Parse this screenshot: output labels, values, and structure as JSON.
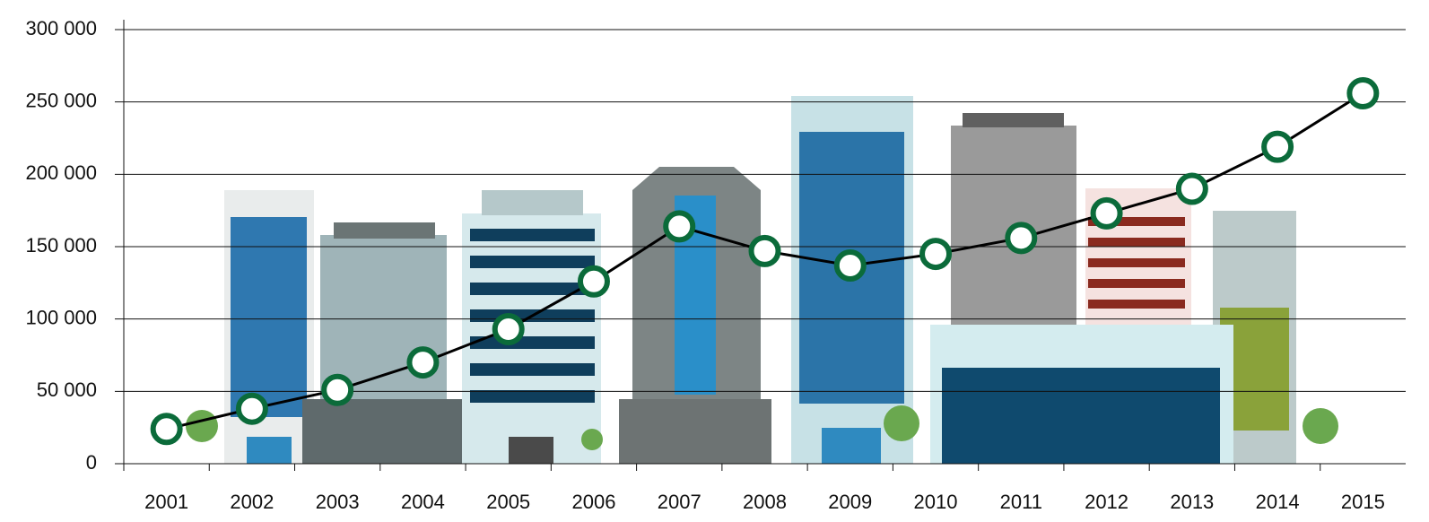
{
  "chart_data": {
    "type": "line",
    "categories": [
      "2001",
      "2002",
      "2003",
      "2004",
      "2005",
      "2006",
      "2007",
      "2008",
      "2009",
      "2010",
      "2011",
      "2012",
      "2013",
      "2014",
      "2015"
    ],
    "series": [
      {
        "color": "#0b6b3a",
        "values": [
          24000,
          38000,
          51000,
          70000,
          93000,
          126000,
          164000,
          147000,
          137000,
          145000,
          156000,
          173000,
          190000,
          219000,
          256000
        ]
      }
    ],
    "ylim": [
      0,
      300000
    ],
    "yticks": [
      0,
      {
        "value": 50000,
        "label": "50 000"
      },
      {
        "value": 100000,
        "label": "100 000"
      },
      {
        "value": 150000,
        "label": "150 000"
      },
      {
        "value": 200000,
        "label": "200 000"
      },
      {
        "value": 250000,
        "label": "250 000"
      },
      {
        "value": 300000,
        "label": "300 000"
      }
    ],
    "grid": true
  }
}
